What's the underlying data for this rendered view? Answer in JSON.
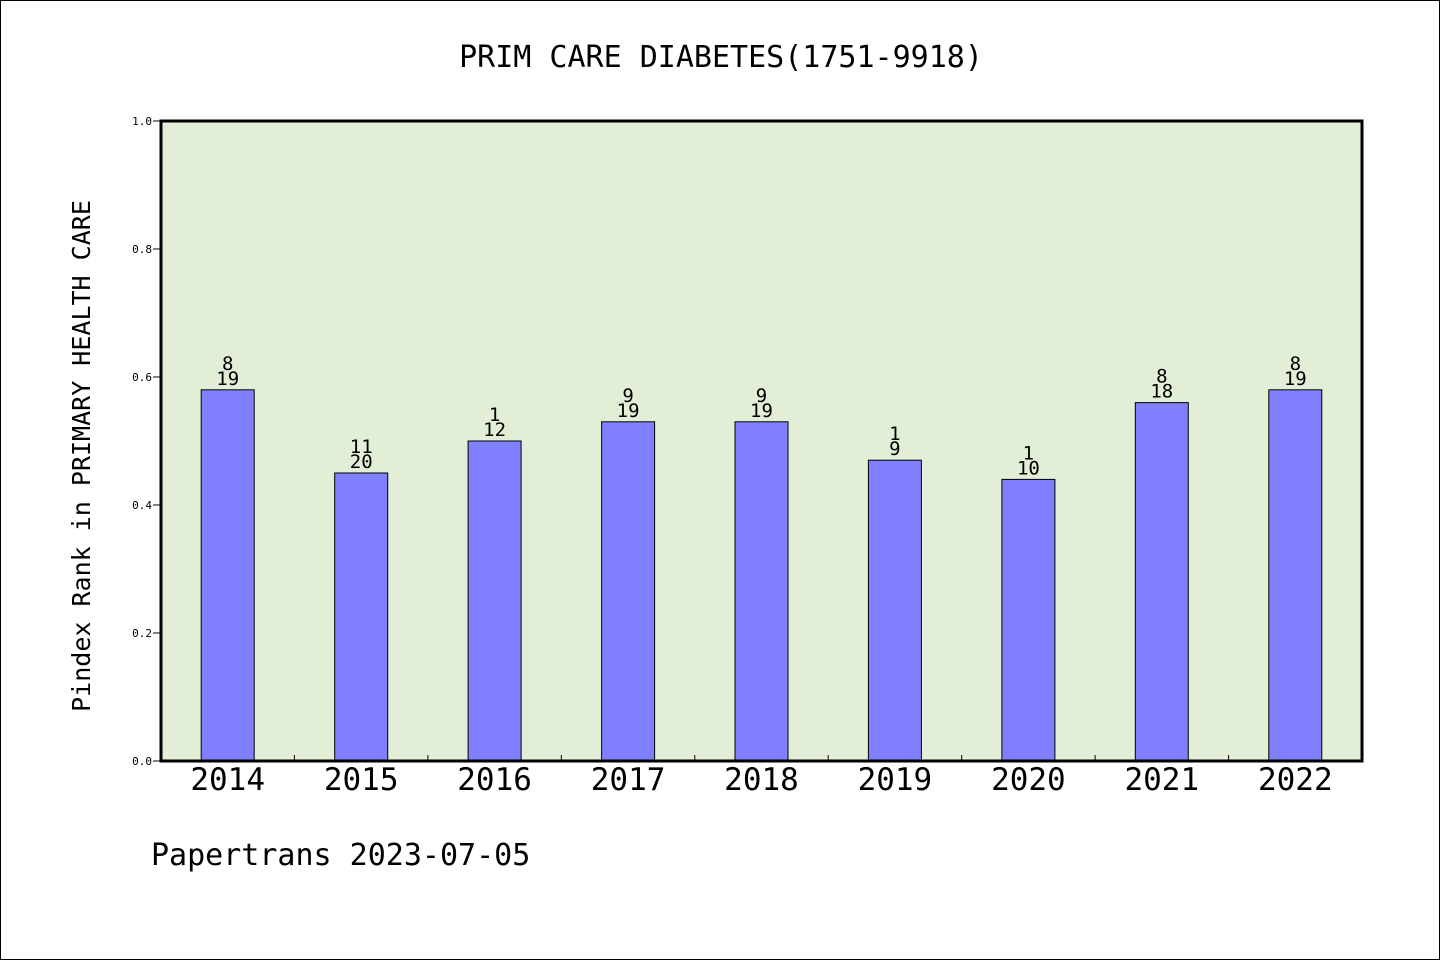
{
  "chart_data": {
    "type": "bar",
    "title": "PRIM CARE DIABETES(1751-9918)",
    "xlabel": "",
    "ylabel": "Pindex Rank in PRIMARY HEALTH CARE",
    "ylim": [
      0,
      1.0
    ],
    "yticks": [
      "0.0",
      "0.2",
      "0.4",
      "0.6",
      "0.8",
      "1.0"
    ],
    "categories": [
      "2014",
      "2015",
      "2016",
      "2017",
      "2018",
      "2019",
      "2020",
      "2021",
      "2022"
    ],
    "values": [
      0.58,
      0.45,
      0.5,
      0.53,
      0.53,
      0.47,
      0.44,
      0.56,
      0.58
    ],
    "rank": [
      "8",
      "11",
      "1",
      "9",
      "9",
      "1",
      "1",
      "8",
      "8"
    ],
    "total": [
      "19",
      "20",
      "12",
      "19",
      "19",
      "9",
      "10",
      "18",
      "19"
    ],
    "grid": false,
    "legend": "none",
    "footer": "Papertrans 2023-07-05",
    "colors": {
      "plot_bg": "#e2efd6",
      "bar": "#8080ff",
      "axis": "#000000"
    }
  }
}
